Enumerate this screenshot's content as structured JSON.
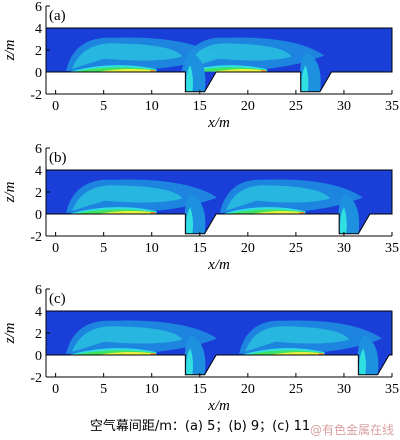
{
  "caption": "空气幕间距/m：(a) 5；(b) 9；(c) 11",
  "watermark": "@有色金属在线",
  "colors": {
    "background_field": "#1a3fd8",
    "mid_field": "#1e90e0",
    "jet_cyan": "#30e0e0",
    "jet_green": "#40e060",
    "jet_yellow": "#e8f040",
    "jet_orange": "#f09030",
    "axis": "#000000"
  },
  "chart_data": [
    {
      "type": "heatmap",
      "panel_label": "(a)",
      "xlabel": "x/m",
      "ylabel": "z/m",
      "xlim": [
        -1,
        35
      ],
      "ylim": [
        -2,
        6
      ],
      "xticks": [
        "0",
        "5",
        "10",
        "15",
        "20",
        "25",
        "30",
        "35"
      ],
      "yticks": [
        "-2",
        "0",
        "2",
        "4",
        "6"
      ],
      "domain_top": 4,
      "air_curtains": [
        {
          "x_start": 1.5,
          "x_end": 10.5
        },
        {
          "x_start": 13.5,
          "x_end": 22
        }
      ],
      "pits": [
        {
          "x_start": 13.5,
          "x_end": 15.5
        },
        {
          "x_start": 25.5,
          "x_end": 27.5
        }
      ],
      "pit_depth": -1.8
    },
    {
      "type": "heatmap",
      "panel_label": "(b)",
      "xlabel": "x/m",
      "ylabel": "z/m",
      "xlim": [
        -1,
        35
      ],
      "ylim": [
        -2,
        6
      ],
      "xticks": [
        "0",
        "5",
        "10",
        "15",
        "20",
        "25",
        "30",
        "35"
      ],
      "yticks": [
        "-2",
        "0",
        "2",
        "4",
        "6"
      ],
      "domain_top": 4,
      "air_curtains": [
        {
          "x_start": 1.5,
          "x_end": 10.5
        },
        {
          "x_start": 17.5,
          "x_end": 26
        }
      ],
      "pits": [
        {
          "x_start": 13.5,
          "x_end": 15.5
        },
        {
          "x_start": 29.5,
          "x_end": 31.5
        }
      ],
      "pit_depth": -1.8
    },
    {
      "type": "heatmap",
      "panel_label": "(c)",
      "xlabel": "x/m",
      "ylabel": "z/m",
      "xlim": [
        -1,
        35
      ],
      "ylim": [
        -2,
        6
      ],
      "xticks": [
        "0",
        "5",
        "10",
        "15",
        "20",
        "25",
        "30",
        "35"
      ],
      "yticks": [
        "-2",
        "0",
        "2",
        "4",
        "6"
      ],
      "domain_top": 4,
      "air_curtains": [
        {
          "x_start": 1.5,
          "x_end": 10.5
        },
        {
          "x_start": 19.5,
          "x_end": 28
        }
      ],
      "pits": [
        {
          "x_start": 13.5,
          "x_end": 15.5
        },
        {
          "x_start": 31.5,
          "x_end": 33.5
        }
      ],
      "pit_depth": -1.8
    }
  ]
}
